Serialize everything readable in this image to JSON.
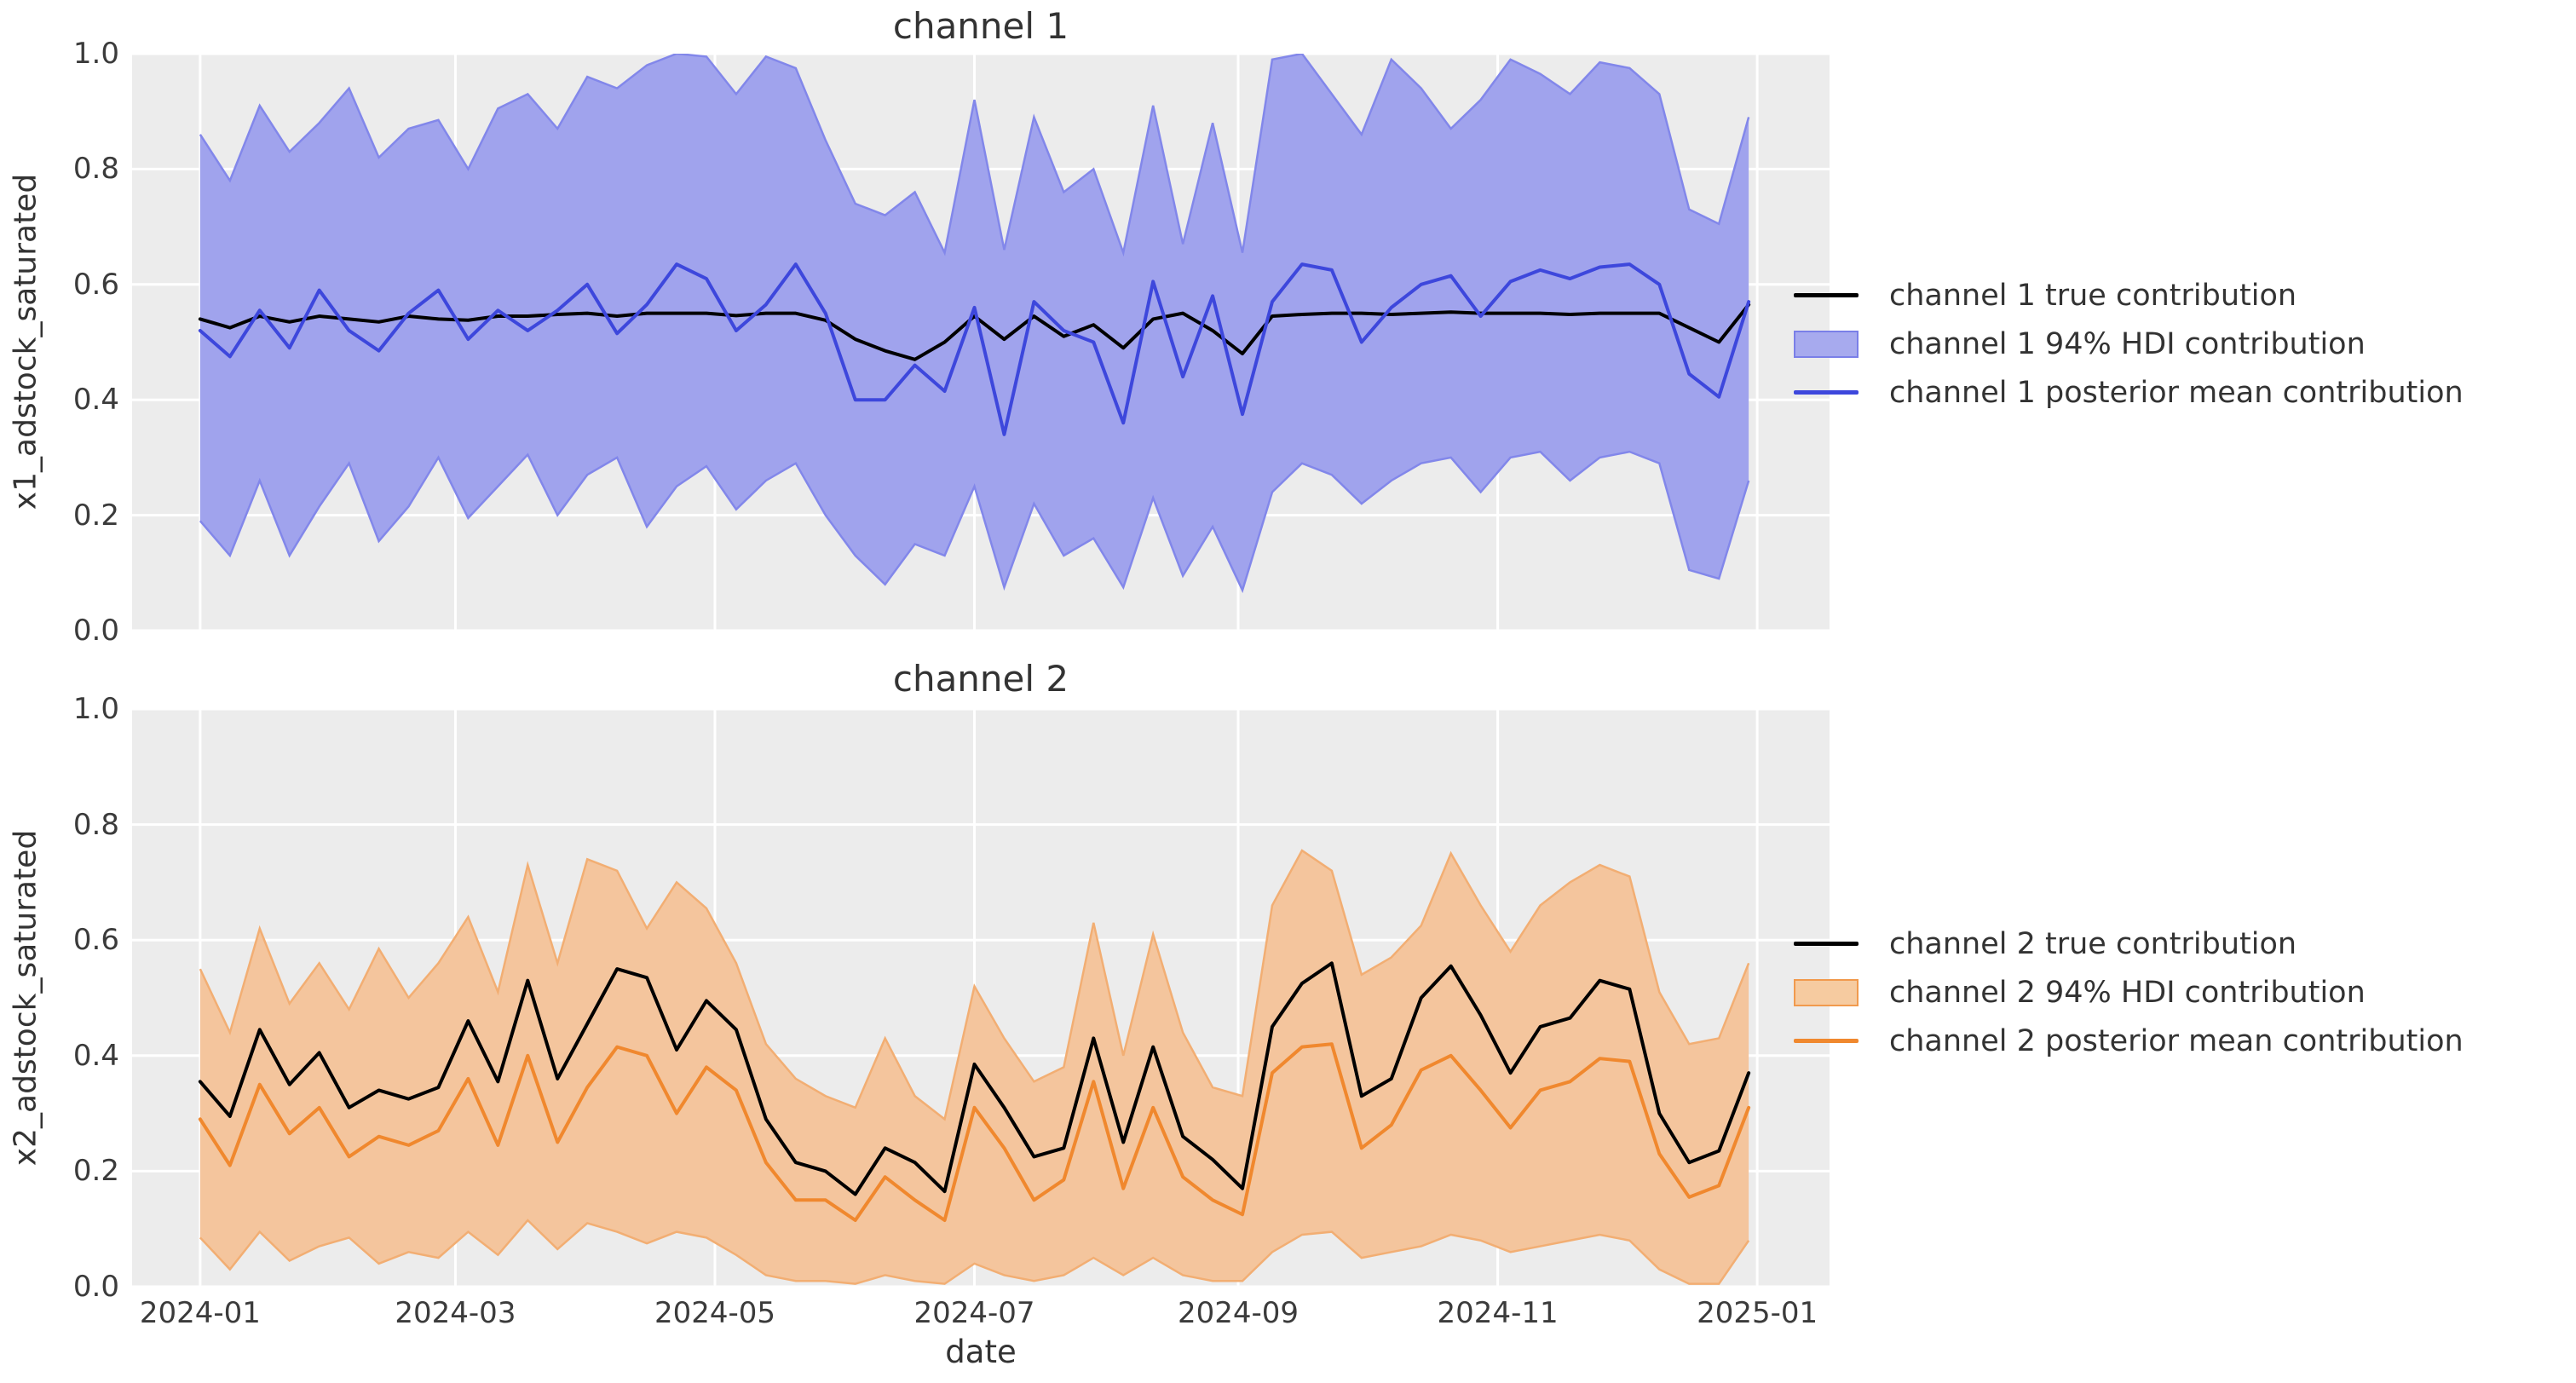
{
  "figure": {
    "background": "#ffffff",
    "plot_background": "#ECECEC",
    "grid_color": "#ffffff",
    "text_color": "#333333",
    "tick_color": "#3b3b3b"
  },
  "chart_data": [
    {
      "type": "area",
      "title": "channel 1",
      "ylabel": "x1_adstock_saturated",
      "xlabel": "",
      "ylim": [
        0.0,
        1.0
      ],
      "xlim_days": [
        -16,
        383
      ],
      "grid": true,
      "legend_position": "right-of-axes",
      "yticks": [
        "0.0",
        "0.2",
        "0.4",
        "0.6",
        "0.8",
        "1.0"
      ],
      "dates": [
        "2024-01-01",
        "2024-01-08",
        "2024-01-15",
        "2024-01-22",
        "2024-01-29",
        "2024-02-05",
        "2024-02-12",
        "2024-02-19",
        "2024-02-26",
        "2024-03-04",
        "2024-03-11",
        "2024-03-18",
        "2024-03-25",
        "2024-04-01",
        "2024-04-08",
        "2024-04-15",
        "2024-04-22",
        "2024-04-29",
        "2024-05-06",
        "2024-05-13",
        "2024-05-20",
        "2024-05-27",
        "2024-06-03",
        "2024-06-10",
        "2024-06-17",
        "2024-06-24",
        "2024-07-01",
        "2024-07-08",
        "2024-07-15",
        "2024-07-22",
        "2024-07-29",
        "2024-08-05",
        "2024-08-12",
        "2024-08-19",
        "2024-08-26",
        "2024-09-02",
        "2024-09-09",
        "2024-09-16",
        "2024-09-23",
        "2024-09-30",
        "2024-10-07",
        "2024-10-14",
        "2024-10-21",
        "2024-10-28",
        "2024-11-04",
        "2024-11-11",
        "2024-11-18",
        "2024-11-25",
        "2024-12-02",
        "2024-12-09",
        "2024-12-16",
        "2024-12-23",
        "2024-12-30"
      ],
      "series": [
        {
          "name": "channel 1 true contribution",
          "type": "line",
          "color": "#000000",
          "values": [
            0.54,
            0.525,
            0.545,
            0.535,
            0.545,
            0.54,
            0.535,
            0.545,
            0.54,
            0.538,
            0.545,
            0.545,
            0.548,
            0.55,
            0.545,
            0.55,
            0.55,
            0.55,
            0.546,
            0.55,
            0.55,
            0.538,
            0.505,
            0.485,
            0.47,
            0.5,
            0.545,
            0.505,
            0.545,
            0.51,
            0.53,
            0.49,
            0.54,
            0.55,
            0.52,
            0.48,
            0.545,
            0.548,
            0.55,
            0.55,
            0.548,
            0.55,
            0.552,
            0.55,
            0.55,
            0.55,
            0.548,
            0.55,
            0.55,
            0.55,
            0.525,
            0.5,
            0.565
          ]
        },
        {
          "name": "channel 1 94% HDI contribution",
          "type": "band",
          "fill": "#A0A3ED",
          "edge": "#8287EA",
          "upper": [
            0.86,
            0.78,
            0.91,
            0.83,
            0.88,
            0.94,
            0.82,
            0.87,
            0.885,
            0.8,
            0.905,
            0.93,
            0.87,
            0.96,
            0.94,
            0.98,
            1.0,
            0.995,
            0.93,
            0.995,
            0.975,
            0.85,
            0.74,
            0.72,
            0.76,
            0.655,
            0.92,
            0.66,
            0.89,
            0.76,
            0.8,
            0.655,
            0.91,
            0.67,
            0.88,
            0.655,
            0.99,
            1.0,
            0.93,
            0.86,
            0.99,
            0.94,
            0.87,
            0.92,
            0.99,
            0.965,
            0.93,
            0.985,
            0.975,
            0.93,
            0.73,
            0.705,
            0.89
          ],
          "lower": [
            0.19,
            0.13,
            0.26,
            0.13,
            0.215,
            0.29,
            0.155,
            0.215,
            0.3,
            0.195,
            0.25,
            0.305,
            0.2,
            0.27,
            0.3,
            0.18,
            0.25,
            0.285,
            0.21,
            0.26,
            0.29,
            0.2,
            0.13,
            0.08,
            0.15,
            0.13,
            0.25,
            0.075,
            0.22,
            0.13,
            0.16,
            0.075,
            0.23,
            0.095,
            0.18,
            0.07,
            0.24,
            0.29,
            0.27,
            0.22,
            0.26,
            0.29,
            0.3,
            0.24,
            0.3,
            0.31,
            0.26,
            0.3,
            0.31,
            0.29,
            0.105,
            0.09,
            0.26
          ]
        },
        {
          "name": "channel 1 posterior mean contribution",
          "type": "line",
          "color": "#3D47DC",
          "values": [
            0.52,
            0.475,
            0.555,
            0.49,
            0.59,
            0.52,
            0.485,
            0.55,
            0.59,
            0.505,
            0.555,
            0.52,
            0.555,
            0.6,
            0.515,
            0.565,
            0.635,
            0.61,
            0.52,
            0.565,
            0.635,
            0.55,
            0.4,
            0.4,
            0.46,
            0.415,
            0.56,
            0.34,
            0.57,
            0.52,
            0.5,
            0.36,
            0.605,
            0.44,
            0.58,
            0.375,
            0.57,
            0.635,
            0.625,
            0.5,
            0.56,
            0.6,
            0.615,
            0.545,
            0.605,
            0.625,
            0.61,
            0.63,
            0.635,
            0.6,
            0.445,
            0.405,
            0.57
          ]
        }
      ],
      "legend": [
        {
          "label": "channel 1 true contribution",
          "swatch": "line",
          "color": "#000000"
        },
        {
          "label": "channel 1 94% HDI contribution",
          "swatch": "patch",
          "color": "#A7AAEE",
          "edge": "#7A7FE8"
        },
        {
          "label": "channel 1 posterior mean contribution",
          "swatch": "line",
          "color": "#3D47DC"
        }
      ]
    },
    {
      "type": "area",
      "title": "channel 2",
      "ylabel": "x2_adstock_saturated",
      "xlabel": "date",
      "ylim": [
        0.0,
        1.0
      ],
      "xlim_days": [
        -16,
        383
      ],
      "grid": true,
      "legend_position": "right-of-axes",
      "yticks": [
        "0.0",
        "0.2",
        "0.4",
        "0.6",
        "0.8",
        "1.0"
      ],
      "xticks": [
        {
          "label": "2024-01",
          "day": 0
        },
        {
          "label": "2024-03",
          "day": 60
        },
        {
          "label": "2024-05",
          "day": 121
        },
        {
          "label": "2024-07",
          "day": 182
        },
        {
          "label": "2024-09",
          "day": 244
        },
        {
          "label": "2024-11",
          "day": 305
        },
        {
          "label": "2025-01",
          "day": 366
        }
      ],
      "dates": [
        "2024-01-01",
        "2024-01-08",
        "2024-01-15",
        "2024-01-22",
        "2024-01-29",
        "2024-02-05",
        "2024-02-12",
        "2024-02-19",
        "2024-02-26",
        "2024-03-04",
        "2024-03-11",
        "2024-03-18",
        "2024-03-25",
        "2024-04-01",
        "2024-04-08",
        "2024-04-15",
        "2024-04-22",
        "2024-04-29",
        "2024-05-06",
        "2024-05-13",
        "2024-05-20",
        "2024-05-27",
        "2024-06-03",
        "2024-06-10",
        "2024-06-17",
        "2024-06-24",
        "2024-07-01",
        "2024-07-08",
        "2024-07-15",
        "2024-07-22",
        "2024-07-29",
        "2024-08-05",
        "2024-08-12",
        "2024-08-19",
        "2024-08-26",
        "2024-09-02",
        "2024-09-09",
        "2024-09-16",
        "2024-09-23",
        "2024-09-30",
        "2024-10-07",
        "2024-10-14",
        "2024-10-21",
        "2024-10-28",
        "2024-11-04",
        "2024-11-11",
        "2024-11-18",
        "2024-11-25",
        "2024-12-02",
        "2024-12-09",
        "2024-12-16",
        "2024-12-23",
        "2024-12-30"
      ],
      "series": [
        {
          "name": "channel 2 true contribution",
          "type": "line",
          "color": "#000000",
          "values": [
            0.355,
            0.295,
            0.445,
            0.35,
            0.405,
            0.31,
            0.34,
            0.325,
            0.345,
            0.46,
            0.355,
            0.53,
            0.36,
            0.455,
            0.55,
            0.535,
            0.41,
            0.495,
            0.445,
            0.29,
            0.215,
            0.2,
            0.16,
            0.24,
            0.215,
            0.165,
            0.385,
            0.31,
            0.225,
            0.24,
            0.43,
            0.25,
            0.415,
            0.26,
            0.22,
            0.17,
            0.45,
            0.525,
            0.56,
            0.33,
            0.36,
            0.5,
            0.555,
            0.47,
            0.37,
            0.45,
            0.465,
            0.53,
            0.515,
            0.3,
            0.215,
            0.235,
            0.37
          ]
        },
        {
          "name": "channel 2 94% HDI contribution",
          "type": "band",
          "fill": "#F4C59D",
          "edge": "#F2AE73",
          "upper": [
            0.55,
            0.44,
            0.62,
            0.49,
            0.56,
            0.48,
            0.585,
            0.5,
            0.56,
            0.64,
            0.51,
            0.73,
            0.56,
            0.74,
            0.72,
            0.62,
            0.7,
            0.655,
            0.56,
            0.42,
            0.36,
            0.33,
            0.31,
            0.43,
            0.33,
            0.29,
            0.52,
            0.43,
            0.355,
            0.38,
            0.63,
            0.4,
            0.61,
            0.44,
            0.345,
            0.33,
            0.66,
            0.755,
            0.72,
            0.54,
            0.57,
            0.625,
            0.75,
            0.66,
            0.58,
            0.66,
            0.7,
            0.73,
            0.71,
            0.51,
            0.42,
            0.43,
            0.56
          ],
          "lower": [
            0.085,
            0.03,
            0.095,
            0.045,
            0.07,
            0.085,
            0.04,
            0.06,
            0.05,
            0.095,
            0.055,
            0.115,
            0.065,
            0.11,
            0.095,
            0.075,
            0.095,
            0.085,
            0.055,
            0.02,
            0.01,
            0.01,
            0.005,
            0.02,
            0.01,
            0.005,
            0.04,
            0.02,
            0.01,
            0.02,
            0.05,
            0.02,
            0.05,
            0.02,
            0.01,
            0.01,
            0.06,
            0.09,
            0.095,
            0.05,
            0.06,
            0.07,
            0.09,
            0.08,
            0.06,
            0.07,
            0.08,
            0.09,
            0.08,
            0.03,
            0.005,
            0.005,
            0.08
          ]
        },
        {
          "name": "channel 2 posterior mean contribution",
          "type": "line",
          "color": "#F0882E",
          "values": [
            0.29,
            0.21,
            0.35,
            0.265,
            0.31,
            0.225,
            0.26,
            0.245,
            0.27,
            0.36,
            0.245,
            0.4,
            0.25,
            0.345,
            0.415,
            0.4,
            0.3,
            0.38,
            0.34,
            0.215,
            0.15,
            0.15,
            0.115,
            0.19,
            0.15,
            0.115,
            0.31,
            0.24,
            0.15,
            0.185,
            0.355,
            0.17,
            0.31,
            0.19,
            0.15,
            0.125,
            0.37,
            0.415,
            0.42,
            0.24,
            0.28,
            0.375,
            0.4,
            0.34,
            0.275,
            0.34,
            0.355,
            0.395,
            0.39,
            0.23,
            0.155,
            0.175,
            0.31
          ]
        }
      ],
      "legend": [
        {
          "label": "channel 2 true contribution",
          "swatch": "line",
          "color": "#000000"
        },
        {
          "label": "channel 2 94% HDI contribution",
          "swatch": "patch",
          "color": "#F6CBA0",
          "edge": "#F19A4D"
        },
        {
          "label": "channel 2 posterior mean contribution",
          "swatch": "line",
          "color": "#F0882E"
        }
      ]
    }
  ]
}
